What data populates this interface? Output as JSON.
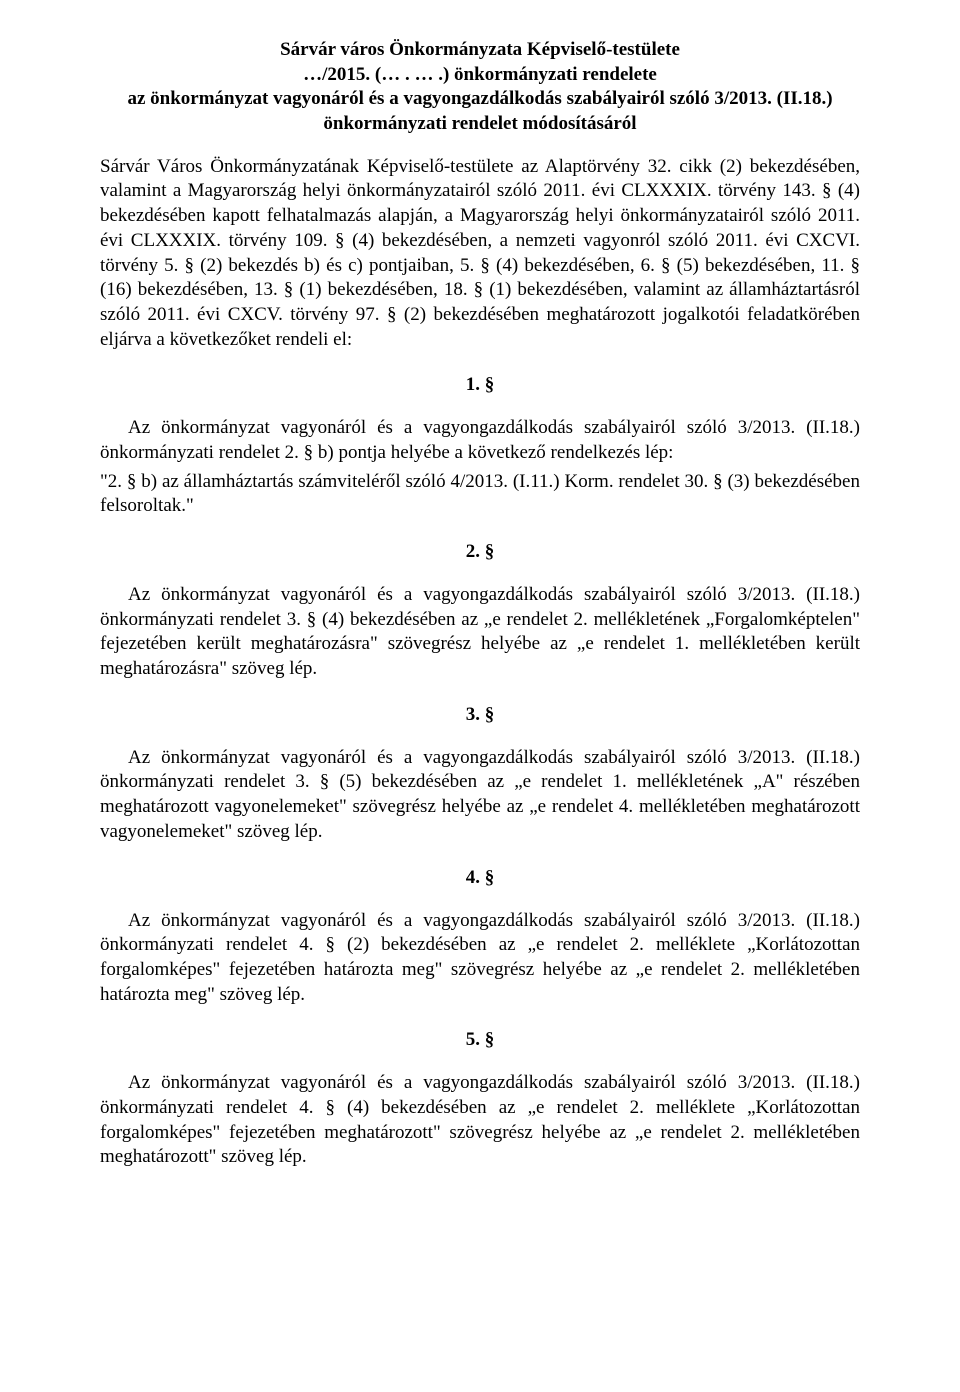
{
  "title": {
    "line1": "Sárvár város Önkormányzata Képviselő-testülete",
    "line2": "…/2015. (… . … .) önkormányzati rendelete",
    "line3": "az önkormányzat vagyonáról és a vagyongazdálkodás szabályairól szóló 3/2013. (II.18.)",
    "line4": "önkormányzati rendelet módosításáról"
  },
  "preamble": "Sárvár Város Önkormányzatának Képviselő-testülete az Alaptörvény 32. cikk (2) bekezdésében, valamint a Magyarország helyi önkormányzatairól szóló 2011. évi CLXXXIX. törvény 143. § (4) bekezdésében kapott felhatalmazás alapján, a Magyarország helyi önkormányzatairól szóló 2011. évi CLXXXIX. törvény 109. § (4) bekezdésében, a nemzeti vagyonról szóló 2011. évi CXCVI. törvény 5. § (2) bekezdés b) és c) pontjaiban, 5. § (4) bekezdésében, 6. § (5) bekezdésében, 11. § (16) bekezdésében, 13. § (1) bekezdésében, 18. § (1) bekezdésében, valamint az államháztartásról szóló 2011. évi CXCV. törvény 97. § (2) bekezdésében meghatározott jogalkotói feladatkörében eljárva a következőket rendeli el:",
  "sections": [
    {
      "num": "1. §",
      "body": "Az önkormányzat vagyonáról és a vagyongazdálkodás szabályairól szóló 3/2013. (II.18.) önkormányzati rendelet 2. § b) pontja helyébe a következő rendelkezés lép:",
      "quote": "\"2. § b) az államháztartás számviteléről szóló 4/2013. (I.11.) Korm. rendelet 30. § (3) bekezdésében felsoroltak.\""
    },
    {
      "num": "2. §",
      "body": "Az önkormányzat vagyonáról és a vagyongazdálkodás szabályairól szóló 3/2013. (II.18.) önkormányzati rendelet 3. § (4) bekezdésében az „e rendelet 2. mellékletének „Forgalomképtelen\" fejezetében került meghatározásra\" szövegrész helyébe az „e rendelet 1. mellékletében került meghatározásra\" szöveg lép."
    },
    {
      "num": "3. §",
      "body": "Az önkormányzat vagyonáról és a vagyongazdálkodás szabályairól szóló 3/2013. (II.18.) önkormányzati rendelet 3. § (5) bekezdésében az „e rendelet 1. mellékletének „A\" részében meghatározott vagyonelemeket\" szövegrész helyébe az „e rendelet 4. mellékletében meghatározott vagyonelemeket\" szöveg lép."
    },
    {
      "num": "4. §",
      "body": "Az önkormányzat vagyonáról és a vagyongazdálkodás szabályairól szóló 3/2013. (II.18.) önkormányzati rendelet 4. § (2) bekezdésében az „e rendelet 2. melléklete „Korlátozottan forgalomképes\" fejezetében határozta meg\" szövegrész helyébe az „e rendelet 2. mellékletében határozta meg\" szöveg lép."
    },
    {
      "num": "5. §",
      "body": "Az önkormányzat vagyonáról és a vagyongazdálkodás szabályairól szóló 3/2013. (II.18.) önkormányzati rendelet 4. § (4) bekezdésében az „e rendelet 2. melléklete „Korlátozottan forgalomképes\" fejezetében meghatározott\" szövegrész helyébe az „e rendelet 2. mellékletében meghatározott\" szöveg lép."
    }
  ]
}
